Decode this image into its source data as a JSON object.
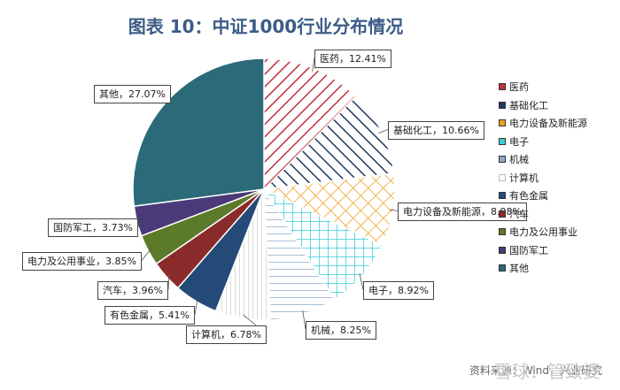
{
  "title": "图表 10：中证1000行业分布情况",
  "source": "资料来源：Wind，兴业研究",
  "watermark": "雪球：管致婆",
  "chart_data": {
    "type": "pie",
    "title": "图表 10：中证1000行业分布情况",
    "slices": [
      {
        "name": "医药",
        "value": 12.41,
        "label": "医药，12.41%",
        "color": "#c0303a",
        "pattern": "diag-right"
      },
      {
        "name": "基础化工",
        "value": 10.66,
        "label": "基础化工，10.66%",
        "color": "#1f3a5f",
        "pattern": "diag-left"
      },
      {
        "name": "电力设备及新能源",
        "value": 8.98,
        "label": "电力设备及新能源，8.98%",
        "color": "#f0a020",
        "pattern": "cross-diag"
      },
      {
        "name": "电子",
        "value": 8.92,
        "label": "电子，8.92%",
        "color": "#3ecfd8",
        "pattern": "grid"
      },
      {
        "name": "机械",
        "value": 8.25,
        "label": "机械，8.25%",
        "color": "#8fa8c8",
        "pattern": "horiz"
      },
      {
        "name": "计算机",
        "value": 6.78,
        "label": "计算机，6.78%",
        "color": "#d8d8d8",
        "pattern": "vert"
      },
      {
        "name": "有色金属",
        "value": 5.41,
        "label": "有色金属，5.41%",
        "color": "#244a78",
        "pattern": "solid"
      },
      {
        "name": "汽车",
        "value": 3.96,
        "label": "汽车，3.96%",
        "color": "#8b2a2a",
        "pattern": "solid"
      },
      {
        "name": "电力及公用事业",
        "value": 3.85,
        "label": "电力及公用事业，3.85%",
        "color": "#5b7a2a",
        "pattern": "solid"
      },
      {
        "name": "国防军工",
        "value": 3.73,
        "label": "国防军工，3.73%",
        "color": "#4a3a78",
        "pattern": "solid"
      },
      {
        "name": "其他",
        "value": 27.07,
        "label": "其他，27.07%",
        "color": "#2b6a78",
        "pattern": "solid"
      }
    ],
    "legend": {
      "position": "right"
    }
  }
}
